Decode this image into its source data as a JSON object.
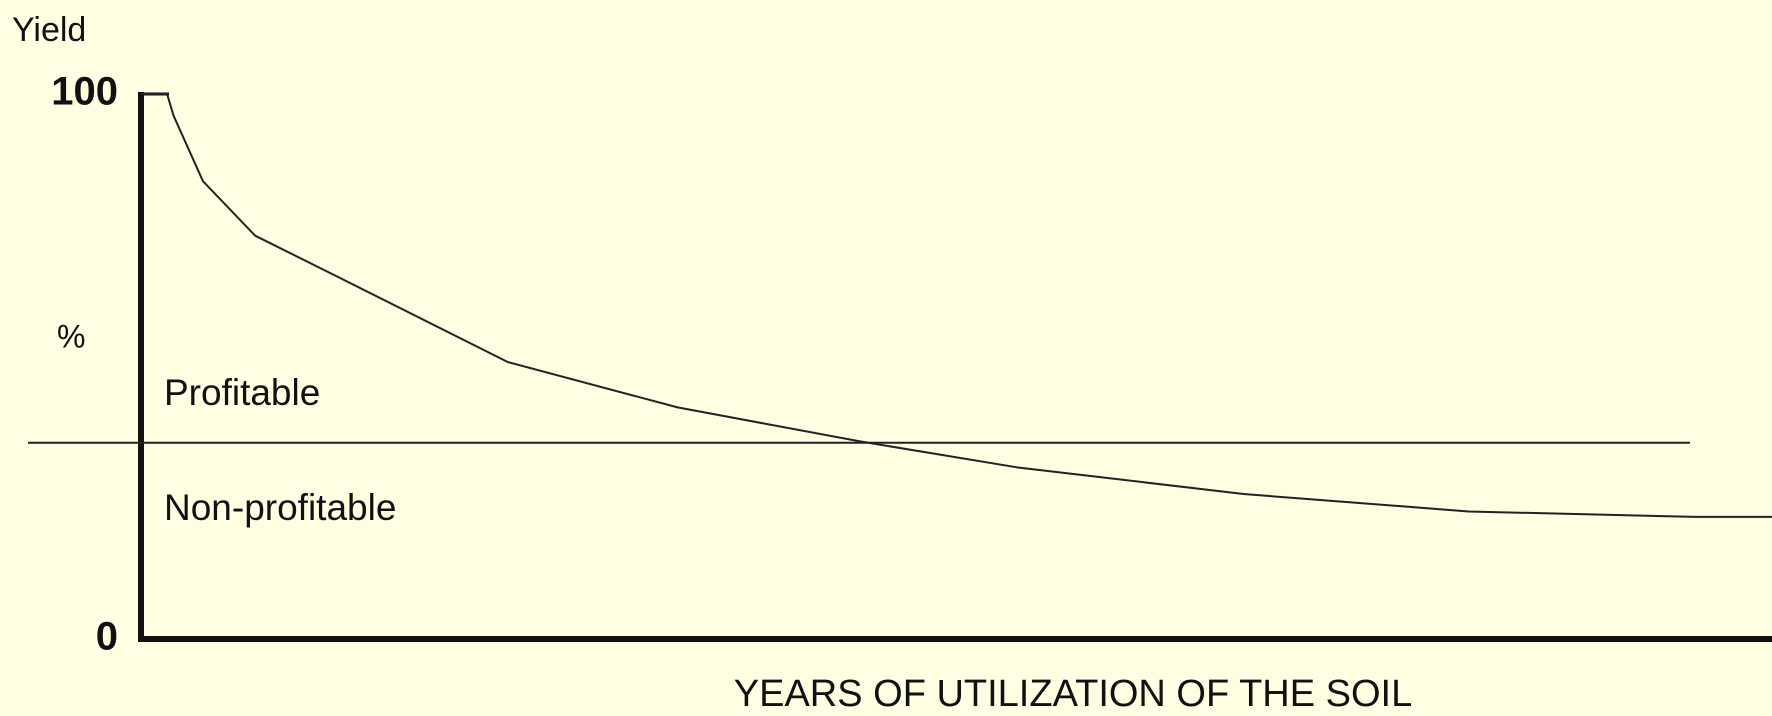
{
  "chart_data": {
    "type": "line",
    "y_axis_label": "Yield",
    "y_unit_label": "%",
    "x_axis_label": "YEARS OF UTILIZATION OF THE SOIL",
    "annotations": [
      "Profitable",
      "Non-profitable"
    ],
    "threshold": 36,
    "x": [
      0,
      1.6,
      2,
      3.8,
      7,
      12.1,
      22.5,
      32.9,
      44,
      53.7,
      67.6,
      81.4,
      95.3,
      100
    ],
    "series": [
      {
        "color": "#222222",
        "values": [
          100,
          100,
          96,
          84,
          74,
          66.4,
          50.8,
          42.5,
          36.3,
          31.5,
          26.6,
          23.4,
          22.4,
          22.4
        ]
      }
    ],
    "xlim": [
      0,
      100
    ],
    "ylim": [
      0,
      100
    ],
    "yticks": [
      0,
      100
    ]
  }
}
